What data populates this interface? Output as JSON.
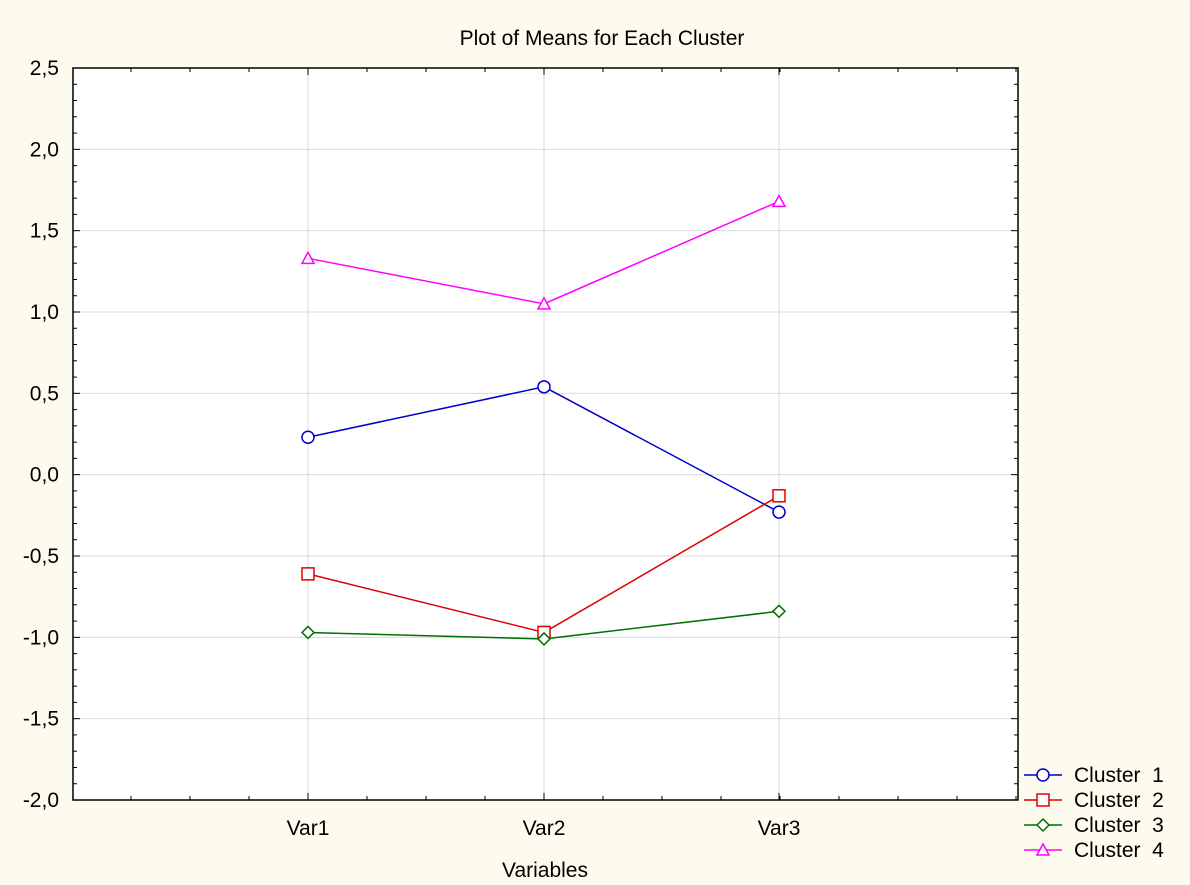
{
  "colors": {
    "background": "#fdfbee",
    "plot_background": "#ffffff",
    "grid": "#d9d9d9",
    "axis": "#000000"
  },
  "chart_data": {
    "type": "line",
    "title": "Plot of Means for Each Cluster",
    "xlabel": "Variables",
    "ylabel": "",
    "categories": [
      "Var1",
      "Var2",
      "Var3"
    ],
    "ylim": [
      -2.0,
      2.5
    ],
    "y_ticks": [
      -2.0,
      -1.5,
      -1.0,
      -0.5,
      0.0,
      0.5,
      1.0,
      1.5,
      2.0,
      2.5
    ],
    "y_tick_labels": [
      "-2,0",
      "-1,5",
      "-1,0",
      "-0,5",
      "0,0",
      "0,5",
      "1,0",
      "1,5",
      "2,0",
      "2,5"
    ],
    "grid": true,
    "legend_position": "bottom-right",
    "series": [
      {
        "name": "Cluster  1",
        "values": [
          0.23,
          0.54,
          -0.23
        ],
        "color": "#0000cc",
        "marker": "circle"
      },
      {
        "name": "Cluster  2",
        "values": [
          -0.61,
          -0.97,
          -0.13
        ],
        "color": "#e00000",
        "marker": "square"
      },
      {
        "name": "Cluster  3",
        "values": [
          -0.97,
          -1.01,
          -0.84
        ],
        "color": "#007000",
        "marker": "diamond"
      },
      {
        "name": "Cluster  4",
        "values": [
          1.33,
          1.05,
          1.68
        ],
        "color": "#ff00ff",
        "marker": "triangle"
      }
    ]
  }
}
